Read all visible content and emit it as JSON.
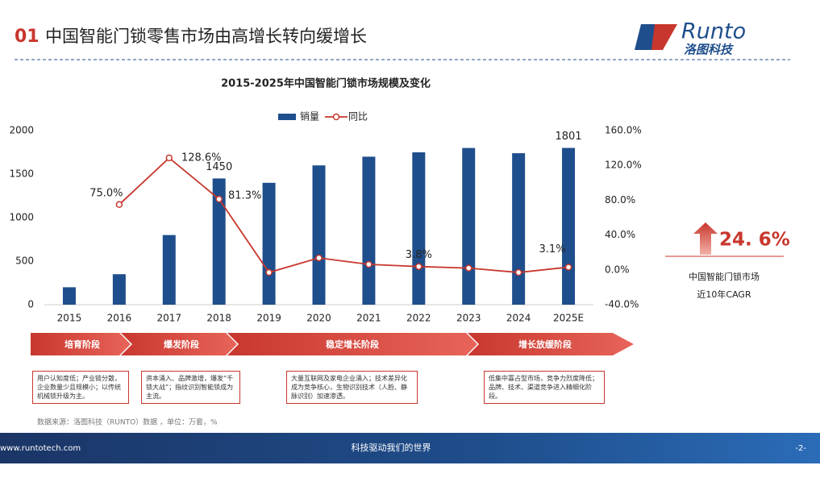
{
  "header": {
    "number": "01",
    "title": "中国智能门锁零售市场由高增长转向缓增长"
  },
  "logo": {
    "name": "Runto",
    "subtitle": "洛图科技"
  },
  "chart_data": {
    "type": "bar-line",
    "title": "2015-2025年中国智能门锁市场规模及变化",
    "categories": [
      "2015",
      "2016",
      "2017",
      "2018",
      "2019",
      "2020",
      "2021",
      "2022",
      "2023",
      "2024",
      "2025E"
    ],
    "series": [
      {
        "name": "销量",
        "type": "bar",
        "color": "#1f4e8c",
        "values": [
          200,
          350,
          800,
          1450,
          1400,
          1600,
          1700,
          1750,
          1800,
          1740,
          1801
        ],
        "value_labels": [
          null,
          null,
          null,
          "1450",
          null,
          null,
          null,
          null,
          null,
          null,
          "1801"
        ]
      },
      {
        "name": "同比",
        "type": "line",
        "axis": "y2",
        "color": "#c8372d",
        "values": [
          null,
          75.0,
          128.6,
          81.3,
          -3.0,
          13.7,
          6.3,
          3.8,
          2.0,
          -3.0,
          3.1
        ],
        "value_labels": [
          null,
          "75.0%",
          "128.6%",
          "81.3%",
          null,
          null,
          null,
          "3.8%",
          null,
          null,
          "3.1%"
        ]
      }
    ],
    "ylim": [
      0,
      2000
    ],
    "yticks": [
      0,
      500,
      1000,
      1500,
      2000
    ],
    "y2lim": [
      -40,
      160
    ],
    "y2ticks": [
      {
        "value": -40,
        "label": "-40.0%"
      },
      {
        "value": 0,
        "label": "0.0%"
      },
      {
        "value": 40,
        "label": "40.0%"
      },
      {
        "value": 80,
        "label": "80.0%"
      },
      {
        "value": 120,
        "label": "120.0%"
      },
      {
        "value": 160,
        "label": "160.0%"
      }
    ],
    "legend": "top"
  },
  "cagr": {
    "value": "24. 6%",
    "label1": "中国智能门锁市场",
    "label2": "近10年CAGR"
  },
  "stages": [
    {
      "name": "培育阶段",
      "desc": "用户认知度低；产业链分散，企业数量少且规模小；以传统机械锁升级为主。"
    },
    {
      "name": "爆发阶段",
      "desc": "资本涌入、品牌激增，爆发“千锁大战”；指纹识别智能锁成为主流。"
    },
    {
      "name": "稳定增长阶段",
      "desc": "大量互联网及家电企业涌入；技术差异化成为竞争核心，生物识别技术（人脸、静脉识别）加速渗透。"
    },
    {
      "name": "增长放缓阶段",
      "desc": "低集中寡占型市场，竞争力烈度降低；品牌、技术、渠道竞争进入精细化阶段。"
    }
  ],
  "source": "数据来源：洛图科技（RUNTO）数据 ，单位：万套，%",
  "footer": {
    "url": "www.runtotech.com",
    "slogan": "科技驱动我们的世界",
    "page": "-2-"
  }
}
